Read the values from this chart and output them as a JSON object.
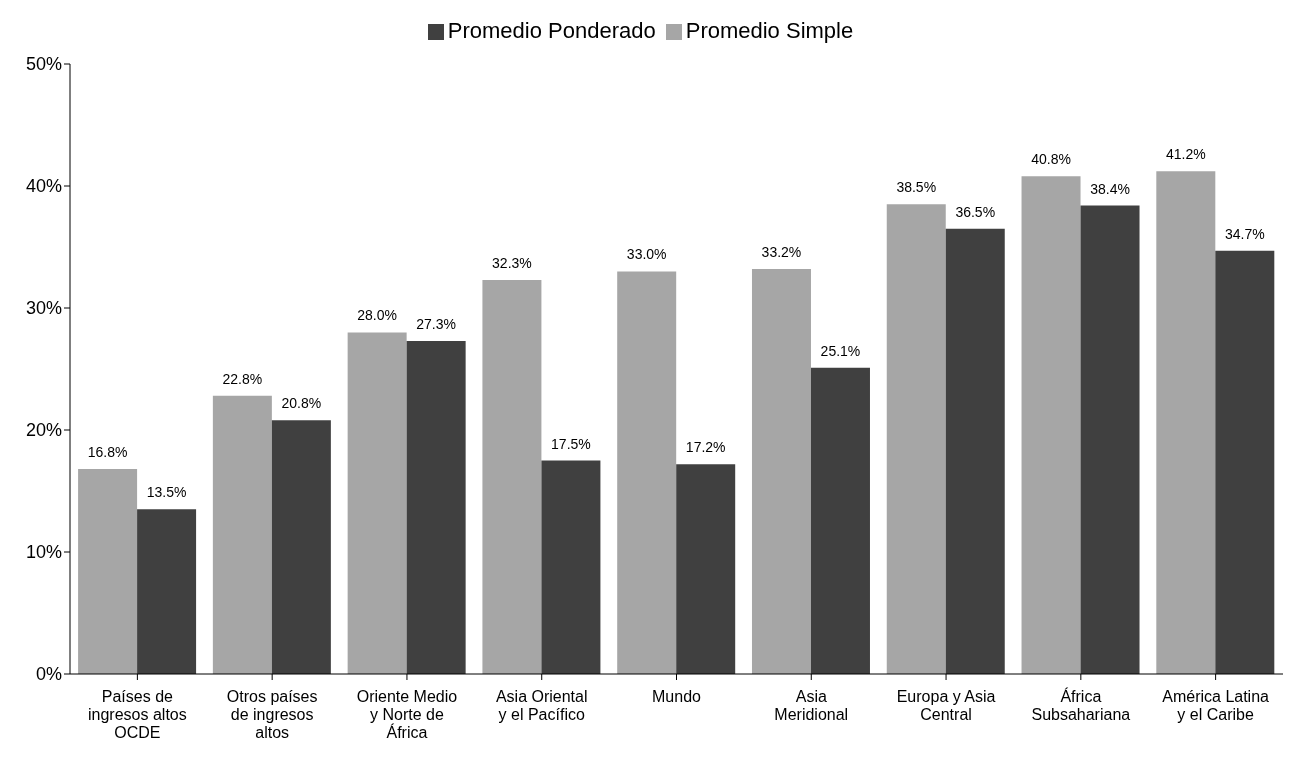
{
  "chart_data": {
    "type": "bar",
    "categories": [
      "Países de ingresos altos OCDE",
      "Otros países de ingresos altos",
      "Oriente Medio y Norte de África",
      "Asia Oriental y el Pacífico",
      "Mundo",
      "Asia Meridional",
      "Europa y Asia Central",
      "África Subsahariana",
      "América Latina y el Caribe"
    ],
    "series": [
      {
        "name": "Promedio Simple",
        "color": "#a6a6a6",
        "values": [
          16.8,
          22.8,
          28.0,
          32.3,
          33.0,
          33.2,
          38.5,
          40.8,
          41.2
        ],
        "value_labels": [
          "16.8%",
          "22.8%",
          "28.0%",
          "32.3%",
          "33.0%",
          "33.2%",
          "38.5%",
          "40.8%",
          "41.2%"
        ]
      },
      {
        "name": "Promedio Ponderado",
        "color": "#404040",
        "values": [
          13.5,
          20.8,
          27.3,
          17.5,
          17.2,
          25.1,
          36.5,
          38.4,
          34.7
        ],
        "value_labels": [
          "13.5%",
          "20.8%",
          "27.3%",
          "17.5%",
          "17.2%",
          "25.1%",
          "36.5%",
          "38.4%",
          "34.7%"
        ]
      }
    ],
    "ylim": [
      0,
      50
    ],
    "yticks": [
      {
        "value": 0,
        "label": "0%"
      },
      {
        "value": 10,
        "label": "10%"
      },
      {
        "value": 20,
        "label": "20%"
      },
      {
        "value": 30,
        "label": "30%"
      },
      {
        "value": 40,
        "label": "40%"
      },
      {
        "value": 50,
        "label": "50%"
      }
    ],
    "grid": false,
    "legend": "top"
  }
}
